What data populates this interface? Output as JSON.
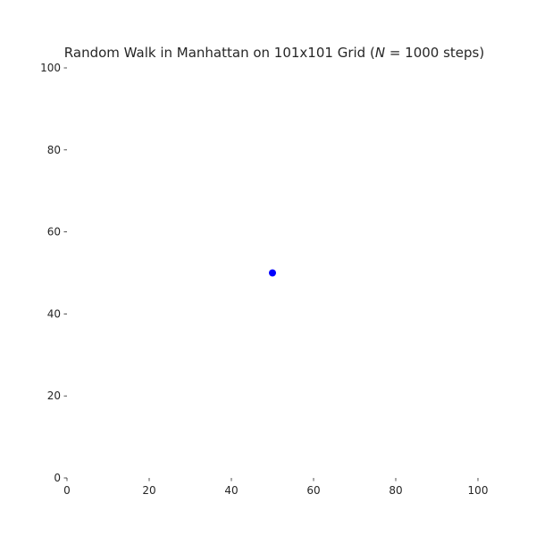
{
  "chart_data": {
    "type": "scatter",
    "title": "Random Walk in Manhattan on 101x101 Grid (N = 1000 steps)",
    "title_parts": {
      "prefix": "Random Walk in Manhattan on 101x101 Grid (",
      "symbol": "N",
      "suffix": " = 1000 steps)"
    },
    "xlabel": "",
    "ylabel": "",
    "xlim": [
      0,
      100
    ],
    "ylim": [
      0,
      100
    ],
    "x_ticks": [
      0,
      20,
      40,
      60,
      80,
      100
    ],
    "y_ticks": [
      0,
      20,
      40,
      60,
      80,
      100
    ],
    "grid": false,
    "axis_spines": false,
    "marker_color": "#0000ff",
    "series": [
      {
        "points": [
          {
            "x": 50,
            "y": 50
          }
        ]
      }
    ]
  }
}
